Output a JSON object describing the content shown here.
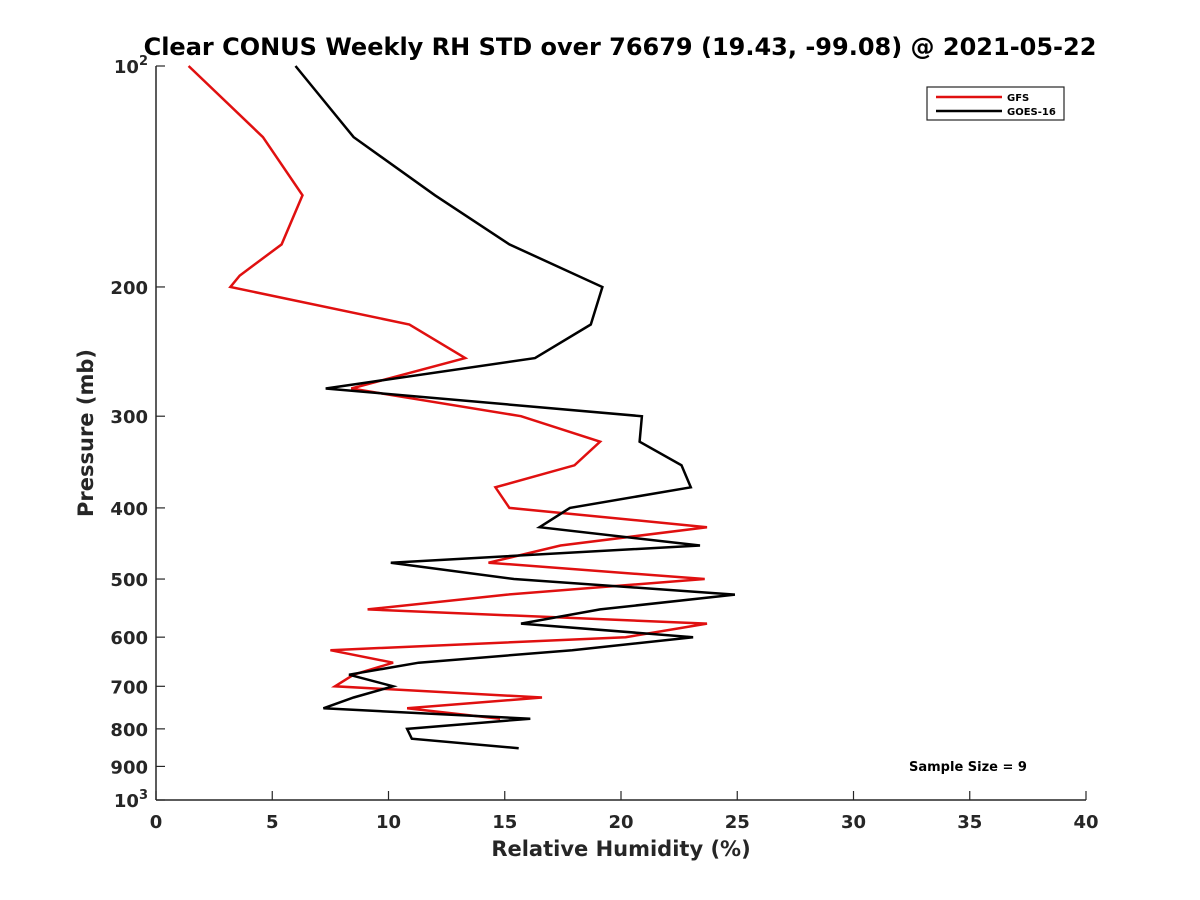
{
  "chart_data": {
    "type": "line",
    "title": "Clear CONUS Weekly RH STD over 76679 (19.43, -99.08) @ 2021-05-22",
    "xlabel": "Relative Humidity (%)",
    "ylabel": "Pressure (mb)",
    "xlim": [
      0,
      40
    ],
    "ylim": [
      100,
      1000
    ],
    "yscale": "log",
    "y_reversed": true,
    "grid": false,
    "legend_position": "top-right",
    "x_ticks": [
      "0",
      "5",
      "10",
      "15",
      "20",
      "25",
      "30",
      "35",
      "40"
    ],
    "x_tick_values": [
      0,
      5,
      10,
      15,
      20,
      25,
      30,
      35,
      40
    ],
    "y_ticks": [
      {
        "value": 100,
        "base": "10",
        "exp": "2"
      },
      {
        "value": 200,
        "label": "200"
      },
      {
        "value": 300,
        "label": "300"
      },
      {
        "value": 400,
        "label": "400"
      },
      {
        "value": 500,
        "label": "500"
      },
      {
        "value": 600,
        "label": "600"
      },
      {
        "value": 700,
        "label": "700"
      },
      {
        "value": 800,
        "label": "800"
      },
      {
        "value": 900,
        "label": "900"
      },
      {
        "value": 1000,
        "base": "10",
        "exp": "3"
      }
    ],
    "series": [
      {
        "name": "GFS",
        "color": "#e01010",
        "points": [
          [
            1.4,
            100
          ],
          [
            4.6,
            125
          ],
          [
            6.3,
            150
          ],
          [
            5.4,
            175
          ],
          [
            3.6,
            193
          ],
          [
            3.2,
            200
          ],
          [
            10.9,
            225
          ],
          [
            13.3,
            250
          ],
          [
            8.4,
            275
          ],
          [
            15.7,
            300
          ],
          [
            19.1,
            325
          ],
          [
            18.0,
            350
          ],
          [
            14.6,
            375
          ],
          [
            15.2,
            400
          ],
          [
            23.7,
            425
          ],
          [
            17.4,
            450
          ],
          [
            14.3,
            475
          ],
          [
            23.6,
            500
          ],
          [
            15.1,
            525
          ],
          [
            9.1,
            550
          ],
          [
            23.7,
            575
          ],
          [
            20.2,
            600
          ],
          [
            7.5,
            625
          ],
          [
            10.2,
            650
          ],
          [
            8.5,
            675
          ],
          [
            7.7,
            700
          ],
          [
            16.6,
            725
          ],
          [
            10.8,
            750
          ],
          [
            14.8,
            775
          ]
        ]
      },
      {
        "name": "GOES-16",
        "color": "#000000",
        "points": [
          [
            6.0,
            100
          ],
          [
            8.5,
            125
          ],
          [
            12.0,
            150
          ],
          [
            15.2,
            175
          ],
          [
            19.2,
            200
          ],
          [
            18.7,
            225
          ],
          [
            16.3,
            250
          ],
          [
            7.3,
            275
          ],
          [
            20.9,
            300
          ],
          [
            20.8,
            325
          ],
          [
            22.6,
            350
          ],
          [
            23.0,
            375
          ],
          [
            17.8,
            400
          ],
          [
            16.5,
            425
          ],
          [
            23.4,
            450
          ],
          [
            10.1,
            475
          ],
          [
            15.4,
            500
          ],
          [
            24.9,
            525
          ],
          [
            19.1,
            550
          ],
          [
            15.7,
            575
          ],
          [
            23.1,
            600
          ],
          [
            17.9,
            625
          ],
          [
            11.3,
            650
          ],
          [
            8.3,
            675
          ],
          [
            10.2,
            700
          ],
          [
            8.5,
            725
          ],
          [
            7.2,
            750
          ],
          [
            16.1,
            775
          ],
          [
            10.8,
            800
          ],
          [
            11.0,
            825
          ],
          [
            15.6,
            850
          ]
        ]
      }
    ],
    "annotations": [
      "Sample Size = 9"
    ]
  }
}
